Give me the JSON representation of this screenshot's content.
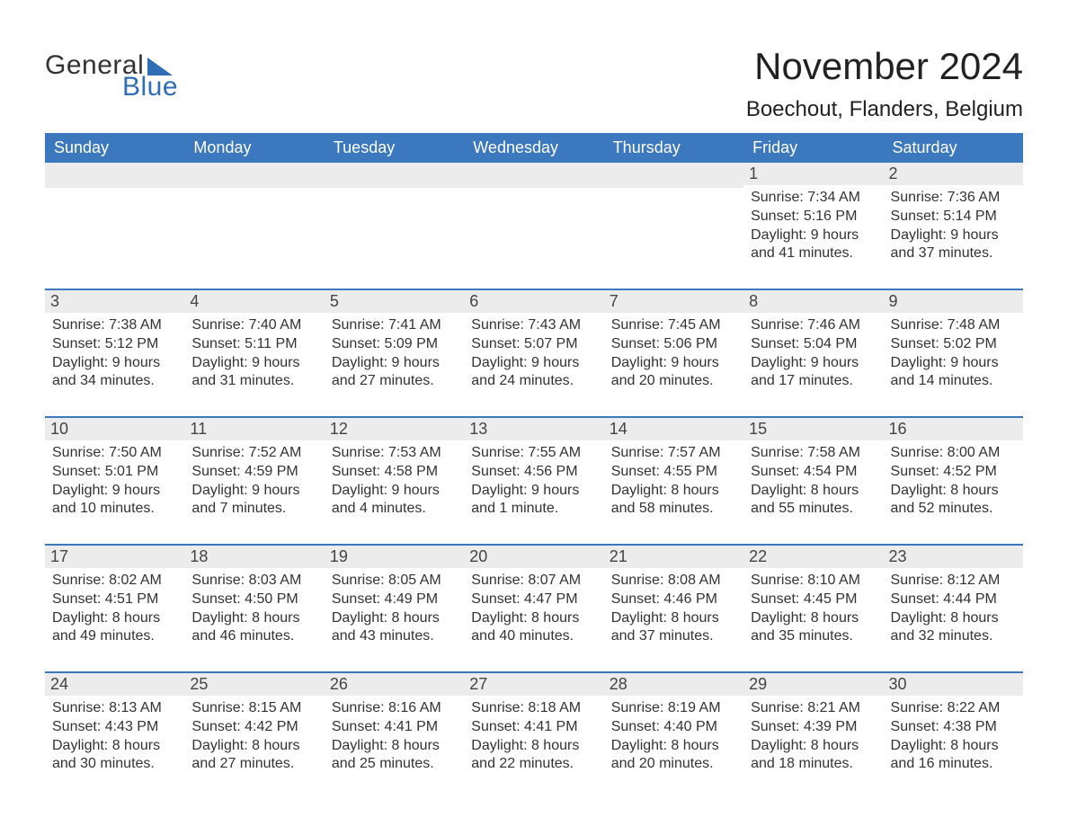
{
  "brand": {
    "name_part1": "General",
    "name_part2": "Blue",
    "text_color": "#333333",
    "accent_color": "#2f6eb5"
  },
  "header": {
    "title": "November 2024",
    "location": "Boechout, Flanders, Belgium",
    "title_fontsize": 42,
    "location_fontsize": 24
  },
  "calendar": {
    "type": "table",
    "header_bg": "#3b78bd",
    "header_text_color": "#ffffff",
    "row_divider_color": "#3b78bd",
    "daynum_bg": "#ececec",
    "background_color": "#ffffff",
    "body_text_color": "#333333",
    "body_fontsize": 16,
    "columns": [
      "Sunday",
      "Monday",
      "Tuesday",
      "Wednesday",
      "Thursday",
      "Friday",
      "Saturday"
    ],
    "weeks": [
      [
        null,
        null,
        null,
        null,
        null,
        {
          "day": "1",
          "sunrise": "Sunrise: 7:34 AM",
          "sunset": "Sunset: 5:16 PM",
          "daylight1": "Daylight: 9 hours",
          "daylight2": "and 41 minutes."
        },
        {
          "day": "2",
          "sunrise": "Sunrise: 7:36 AM",
          "sunset": "Sunset: 5:14 PM",
          "daylight1": "Daylight: 9 hours",
          "daylight2": "and 37 minutes."
        }
      ],
      [
        {
          "day": "3",
          "sunrise": "Sunrise: 7:38 AM",
          "sunset": "Sunset: 5:12 PM",
          "daylight1": "Daylight: 9 hours",
          "daylight2": "and 34 minutes."
        },
        {
          "day": "4",
          "sunrise": "Sunrise: 7:40 AM",
          "sunset": "Sunset: 5:11 PM",
          "daylight1": "Daylight: 9 hours",
          "daylight2": "and 31 minutes."
        },
        {
          "day": "5",
          "sunrise": "Sunrise: 7:41 AM",
          "sunset": "Sunset: 5:09 PM",
          "daylight1": "Daylight: 9 hours",
          "daylight2": "and 27 minutes."
        },
        {
          "day": "6",
          "sunrise": "Sunrise: 7:43 AM",
          "sunset": "Sunset: 5:07 PM",
          "daylight1": "Daylight: 9 hours",
          "daylight2": "and 24 minutes."
        },
        {
          "day": "7",
          "sunrise": "Sunrise: 7:45 AM",
          "sunset": "Sunset: 5:06 PM",
          "daylight1": "Daylight: 9 hours",
          "daylight2": "and 20 minutes."
        },
        {
          "day": "8",
          "sunrise": "Sunrise: 7:46 AM",
          "sunset": "Sunset: 5:04 PM",
          "daylight1": "Daylight: 9 hours",
          "daylight2": "and 17 minutes."
        },
        {
          "day": "9",
          "sunrise": "Sunrise: 7:48 AM",
          "sunset": "Sunset: 5:02 PM",
          "daylight1": "Daylight: 9 hours",
          "daylight2": "and 14 minutes."
        }
      ],
      [
        {
          "day": "10",
          "sunrise": "Sunrise: 7:50 AM",
          "sunset": "Sunset: 5:01 PM",
          "daylight1": "Daylight: 9 hours",
          "daylight2": "and 10 minutes."
        },
        {
          "day": "11",
          "sunrise": "Sunrise: 7:52 AM",
          "sunset": "Sunset: 4:59 PM",
          "daylight1": "Daylight: 9 hours",
          "daylight2": "and 7 minutes."
        },
        {
          "day": "12",
          "sunrise": "Sunrise: 7:53 AM",
          "sunset": "Sunset: 4:58 PM",
          "daylight1": "Daylight: 9 hours",
          "daylight2": "and 4 minutes."
        },
        {
          "day": "13",
          "sunrise": "Sunrise: 7:55 AM",
          "sunset": "Sunset: 4:56 PM",
          "daylight1": "Daylight: 9 hours",
          "daylight2": "and 1 minute."
        },
        {
          "day": "14",
          "sunrise": "Sunrise: 7:57 AM",
          "sunset": "Sunset: 4:55 PM",
          "daylight1": "Daylight: 8 hours",
          "daylight2": "and 58 minutes."
        },
        {
          "day": "15",
          "sunrise": "Sunrise: 7:58 AM",
          "sunset": "Sunset: 4:54 PM",
          "daylight1": "Daylight: 8 hours",
          "daylight2": "and 55 minutes."
        },
        {
          "day": "16",
          "sunrise": "Sunrise: 8:00 AM",
          "sunset": "Sunset: 4:52 PM",
          "daylight1": "Daylight: 8 hours",
          "daylight2": "and 52 minutes."
        }
      ],
      [
        {
          "day": "17",
          "sunrise": "Sunrise: 8:02 AM",
          "sunset": "Sunset: 4:51 PM",
          "daylight1": "Daylight: 8 hours",
          "daylight2": "and 49 minutes."
        },
        {
          "day": "18",
          "sunrise": "Sunrise: 8:03 AM",
          "sunset": "Sunset: 4:50 PM",
          "daylight1": "Daylight: 8 hours",
          "daylight2": "and 46 minutes."
        },
        {
          "day": "19",
          "sunrise": "Sunrise: 8:05 AM",
          "sunset": "Sunset: 4:49 PM",
          "daylight1": "Daylight: 8 hours",
          "daylight2": "and 43 minutes."
        },
        {
          "day": "20",
          "sunrise": "Sunrise: 8:07 AM",
          "sunset": "Sunset: 4:47 PM",
          "daylight1": "Daylight: 8 hours",
          "daylight2": "and 40 minutes."
        },
        {
          "day": "21",
          "sunrise": "Sunrise: 8:08 AM",
          "sunset": "Sunset: 4:46 PM",
          "daylight1": "Daylight: 8 hours",
          "daylight2": "and 37 minutes."
        },
        {
          "day": "22",
          "sunrise": "Sunrise: 8:10 AM",
          "sunset": "Sunset: 4:45 PM",
          "daylight1": "Daylight: 8 hours",
          "daylight2": "and 35 minutes."
        },
        {
          "day": "23",
          "sunrise": "Sunrise: 8:12 AM",
          "sunset": "Sunset: 4:44 PM",
          "daylight1": "Daylight: 8 hours",
          "daylight2": "and 32 minutes."
        }
      ],
      [
        {
          "day": "24",
          "sunrise": "Sunrise: 8:13 AM",
          "sunset": "Sunset: 4:43 PM",
          "daylight1": "Daylight: 8 hours",
          "daylight2": "and 30 minutes."
        },
        {
          "day": "25",
          "sunrise": "Sunrise: 8:15 AM",
          "sunset": "Sunset: 4:42 PM",
          "daylight1": "Daylight: 8 hours",
          "daylight2": "and 27 minutes."
        },
        {
          "day": "26",
          "sunrise": "Sunrise: 8:16 AM",
          "sunset": "Sunset: 4:41 PM",
          "daylight1": "Daylight: 8 hours",
          "daylight2": "and 25 minutes."
        },
        {
          "day": "27",
          "sunrise": "Sunrise: 8:18 AM",
          "sunset": "Sunset: 4:41 PM",
          "daylight1": "Daylight: 8 hours",
          "daylight2": "and 22 minutes."
        },
        {
          "day": "28",
          "sunrise": "Sunrise: 8:19 AM",
          "sunset": "Sunset: 4:40 PM",
          "daylight1": "Daylight: 8 hours",
          "daylight2": "and 20 minutes."
        },
        {
          "day": "29",
          "sunrise": "Sunrise: 8:21 AM",
          "sunset": "Sunset: 4:39 PM",
          "daylight1": "Daylight: 8 hours",
          "daylight2": "and 18 minutes."
        },
        {
          "day": "30",
          "sunrise": "Sunrise: 8:22 AM",
          "sunset": "Sunset: 4:38 PM",
          "daylight1": "Daylight: 8 hours",
          "daylight2": "and 16 minutes."
        }
      ]
    ]
  }
}
